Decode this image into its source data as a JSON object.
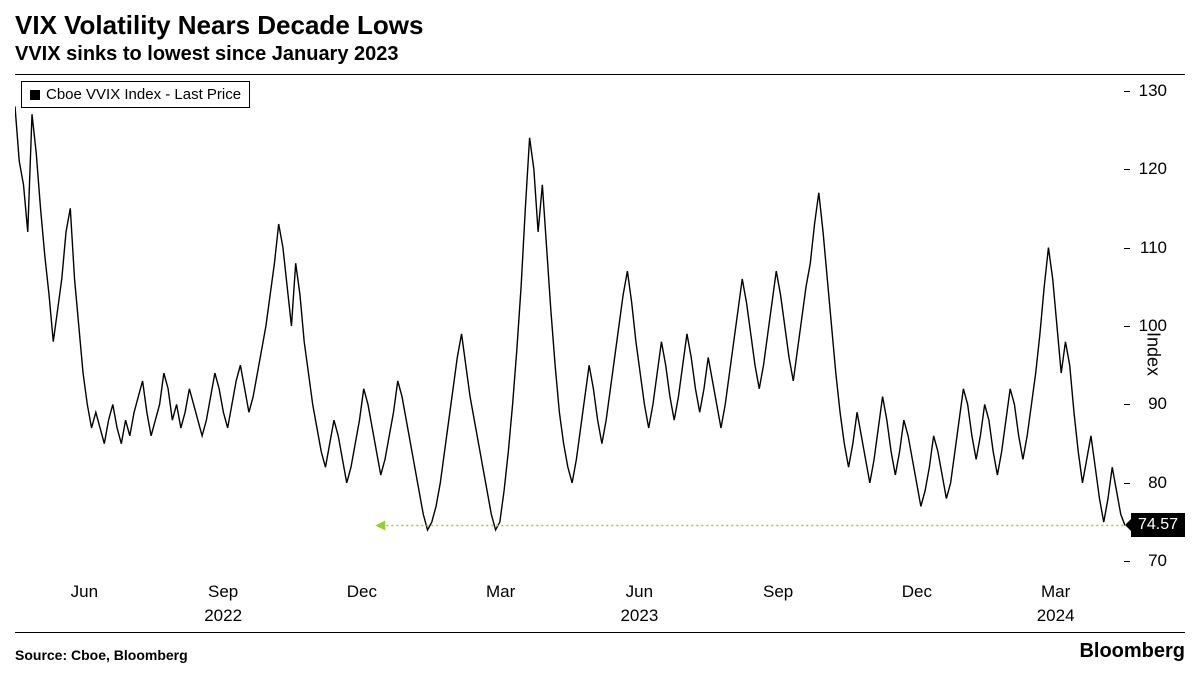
{
  "title": "VIX Volatility Nears Decade Lows",
  "subtitle": "VVIX sinks to lowest since January 2023",
  "legend_label": "Cboe VVIX Index - Last Price",
  "y_axis_title": "Index",
  "source_text": "Source: Cboe, Bloomberg",
  "brand": "Bloomberg",
  "last_price": "74.57",
  "chart": {
    "type": "line",
    "line_color": "#000000",
    "line_width": 1.4,
    "background_color": "#ffffff",
    "ylim": [
      68,
      132
    ],
    "yticks": [
      70,
      80,
      90,
      100,
      110,
      120,
      130
    ],
    "x_range_months": 24,
    "x_month_ticks": [
      {
        "pos": 0.0625,
        "label": "Jun"
      },
      {
        "pos": 0.1875,
        "label": "Sep"
      },
      {
        "pos": 0.3125,
        "label": "Dec"
      },
      {
        "pos": 0.4375,
        "label": "Mar"
      },
      {
        "pos": 0.5625,
        "label": "Jun"
      },
      {
        "pos": 0.6875,
        "label": "Sep"
      },
      {
        "pos": 0.8125,
        "label": "Dec"
      },
      {
        "pos": 0.9375,
        "label": "Mar"
      }
    ],
    "x_year_ticks": [
      {
        "pos": 0.1875,
        "label": "2022"
      },
      {
        "pos": 0.5625,
        "label": "2023"
      },
      {
        "pos": 0.9375,
        "label": "2024"
      }
    ],
    "reference_line": {
      "y": 74.57,
      "x_start": 0.33,
      "x_end": 1.0,
      "color": "#9acd32",
      "dash": "2,3",
      "width": 1.5,
      "arrow_left": true
    },
    "series": [
      128,
      121,
      118,
      112,
      127,
      122,
      115,
      109,
      104,
      98,
      102,
      106,
      112,
      115,
      106,
      100,
      94,
      90,
      87,
      89,
      87,
      85,
      88,
      90,
      87,
      85,
      88,
      86,
      89,
      91,
      93,
      89,
      86,
      88,
      90,
      94,
      92,
      88,
      90,
      87,
      89,
      92,
      90,
      88,
      86,
      88,
      91,
      94,
      92,
      89,
      87,
      90,
      93,
      95,
      92,
      89,
      91,
      94,
      97,
      100,
      104,
      108,
      113,
      110,
      105,
      100,
      108,
      104,
      98,
      94,
      90,
      87,
      84,
      82,
      85,
      88,
      86,
      83,
      80,
      82,
      85,
      88,
      92,
      90,
      87,
      84,
      81,
      83,
      86,
      89,
      93,
      91,
      88,
      85,
      82,
      79,
      76,
      74,
      75,
      77,
      80,
      84,
      88,
      92,
      96,
      99,
      95,
      91,
      88,
      85,
      82,
      79,
      76,
      74,
      75,
      79,
      84,
      90,
      97,
      105,
      115,
      124,
      120,
      112,
      118,
      110,
      102,
      95,
      89,
      85,
      82,
      80,
      83,
      87,
      91,
      95,
      92,
      88,
      85,
      88,
      92,
      96,
      100,
      104,
      107,
      103,
      98,
      94,
      90,
      87,
      90,
      94,
      98,
      95,
      91,
      88,
      91,
      95,
      99,
      96,
      92,
      89,
      92,
      96,
      93,
      90,
      87,
      90,
      94,
      98,
      102,
      106,
      103,
      99,
      95,
      92,
      95,
      99,
      103,
      107,
      104,
      100,
      96,
      93,
      97,
      101,
      105,
      108,
      113,
      117,
      112,
      106,
      100,
      94,
      89,
      85,
      82,
      85,
      89,
      86,
      83,
      80,
      83,
      87,
      91,
      88,
      84,
      81,
      84,
      88,
      86,
      83,
      80,
      77,
      79,
      82,
      86,
      84,
      81,
      78,
      80,
      84,
      88,
      92,
      90,
      86,
      83,
      86,
      90,
      88,
      84,
      81,
      84,
      88,
      92,
      90,
      86,
      83,
      86,
      90,
      94,
      99,
      105,
      110,
      106,
      100,
      94,
      98,
      95,
      89,
      84,
      80,
      83,
      86,
      82,
      78,
      75,
      78,
      82,
      79,
      76,
      74.57
    ]
  }
}
